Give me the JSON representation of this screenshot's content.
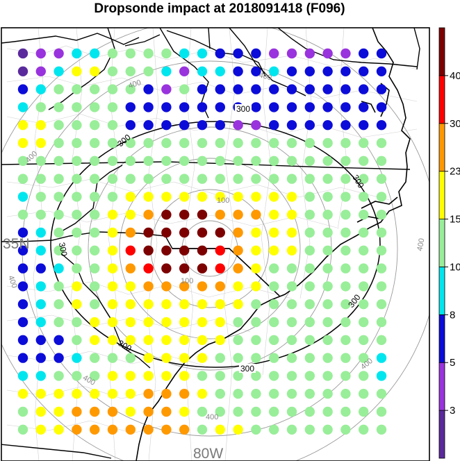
{
  "title": "Dropsonde impact at 2018091418 (F096)",
  "map_labels": {
    "lat": "35N",
    "lon": "80W"
  },
  "contour_labels": {
    "inner": "100",
    "mid": "300",
    "outer": "400"
  },
  "colorbar": {
    "ticks": [
      "3",
      "5",
      "8",
      "10",
      "15",
      "23",
      "30",
      "40"
    ],
    "colors": [
      "#5a2a9c",
      "#9933dd",
      "#0c0cd9",
      "#00e6ee",
      "#99ee99",
      "#ffff00",
      "#ff9900",
      "#ff0000",
      "#7c0000"
    ]
  },
  "chart_data": {
    "type": "point-grid on map",
    "lon_label": "80W",
    "lat_label": "35N",
    "contour_levels": [
      100,
      300,
      400
    ],
    "color_levels": [
      3,
      5,
      8,
      10,
      15,
      23,
      30,
      40
    ],
    "grid_values": [
      [
        2,
        3,
        3,
        8,
        8,
        10,
        10,
        10,
        10,
        8,
        8,
        5,
        5,
        5,
        3,
        3,
        3,
        3,
        3,
        5,
        5
      ],
      [
        2,
        3,
        8,
        15,
        15,
        10,
        10,
        10,
        8,
        3,
        8,
        8,
        5,
        5,
        8,
        5,
        5,
        5,
        5,
        5,
        5
      ],
      [
        5,
        8,
        10,
        10,
        10,
        10,
        10,
        5,
        3,
        10,
        5,
        5,
        5,
        5,
        5,
        5,
        5,
        5,
        5,
        5,
        5
      ],
      [
        8,
        10,
        10,
        10,
        10,
        10,
        5,
        5,
        5,
        5,
        5,
        5,
        5,
        5,
        5,
        5,
        5,
        5,
        5,
        5,
        5
      ],
      [
        15,
        15,
        10,
        10,
        10,
        10,
        5,
        5,
        5,
        5,
        5,
        5,
        3,
        3,
        5,
        5,
        5,
        5,
        5,
        5,
        5
      ],
      [
        15,
        15,
        10,
        10,
        10,
        10,
        10,
        10,
        10,
        10,
        10,
        10,
        10,
        10,
        10,
        10,
        10,
        10,
        10,
        10,
        10
      ],
      [
        10,
        10,
        10,
        10,
        10,
        10,
        10,
        10,
        10,
        10,
        10,
        10,
        10,
        10,
        10,
        10,
        10,
        10,
        10,
        10,
        10
      ],
      [
        10,
        10,
        10,
        10,
        10,
        10,
        10,
        10,
        10,
        10,
        10,
        10,
        10,
        10,
        10,
        10,
        10,
        10,
        10,
        10,
        10
      ],
      [
        8,
        10,
        10,
        10,
        10,
        10,
        15,
        15,
        15,
        15,
        15,
        15,
        15,
        15,
        15,
        15,
        10,
        10,
        10,
        10,
        10
      ],
      [
        10,
        10,
        10,
        10,
        10,
        15,
        15,
        23,
        40,
        40,
        40,
        23,
        23,
        23,
        15,
        15,
        10,
        10,
        10,
        10,
        10
      ],
      [
        5,
        8,
        10,
        10,
        10,
        15,
        23,
        40,
        40,
        40,
        40,
        40,
        23,
        15,
        15,
        15,
        10,
        10,
        10,
        10,
        10
      ],
      [
        5,
        8,
        10,
        10,
        10,
        15,
        30,
        40,
        40,
        40,
        40,
        30,
        23,
        15,
        15,
        15,
        10,
        10,
        10,
        10,
        10
      ],
      [
        5,
        5,
        8,
        10,
        10,
        15,
        23,
        30,
        40,
        40,
        40,
        30,
        23,
        15,
        10,
        10,
        10,
        10,
        10,
        10,
        10
      ],
      [
        5,
        8,
        10,
        15,
        10,
        15,
        15,
        23,
        23,
        23,
        23,
        23,
        15,
        15,
        10,
        10,
        10,
        10,
        10,
        10,
        10
      ],
      [
        5,
        8,
        10,
        15,
        10,
        15,
        15,
        15,
        15,
        15,
        15,
        15,
        15,
        10,
        10,
        10,
        10,
        10,
        10,
        10,
        10
      ],
      [
        5,
        8,
        10,
        10,
        15,
        15,
        15,
        15,
        15,
        15,
        15,
        15,
        10,
        10,
        10,
        10,
        10,
        10,
        10,
        10,
        10
      ],
      [
        5,
        5,
        5,
        10,
        15,
        15,
        15,
        15,
        15,
        15,
        15,
        15,
        10,
        10,
        10,
        10,
        10,
        10,
        10,
        10,
        10
      ],
      [
        5,
        5,
        5,
        8,
        10,
        10,
        10,
        15,
        15,
        15,
        15,
        10,
        10,
        10,
        10,
        10,
        10,
        10,
        10,
        10,
        8
      ],
      [
        8,
        8,
        10,
        10,
        10,
        15,
        15,
        15,
        15,
        15,
        10,
        10,
        10,
        10,
        10,
        10,
        10,
        10,
        10,
        10,
        8
      ],
      [
        15,
        15,
        15,
        15,
        15,
        15,
        15,
        23,
        23,
        23,
        15,
        10,
        10,
        10,
        10,
        10,
        10,
        10,
        10,
        10,
        10
      ],
      [
        10,
        15,
        15,
        23,
        23,
        23,
        15,
        23,
        23,
        15,
        10,
        10,
        10,
        10,
        10,
        10,
        10,
        10,
        10,
        10,
        10
      ],
      [
        10,
        15,
        15,
        23,
        23,
        23,
        23,
        23,
        23,
        23,
        10,
        15,
        15,
        10,
        10,
        10,
        10,
        10,
        10,
        10,
        10
      ]
    ]
  }
}
